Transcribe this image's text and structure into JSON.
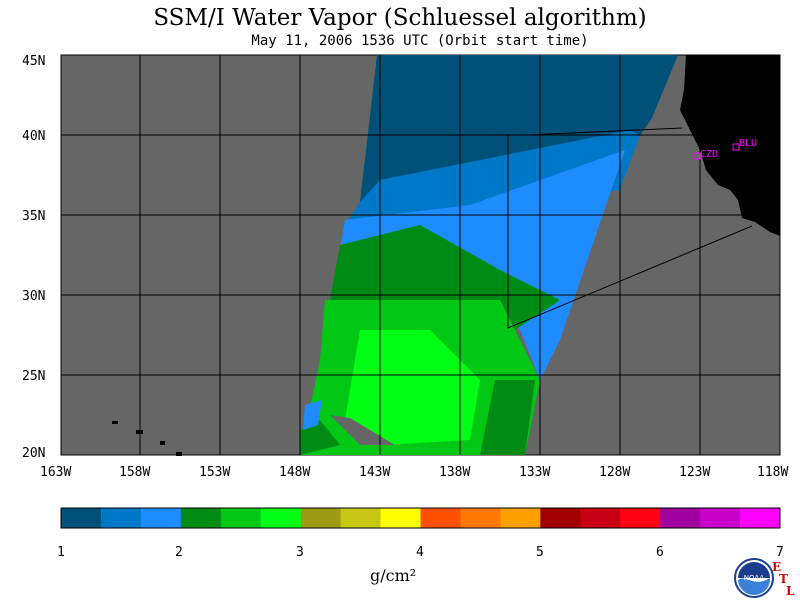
{
  "title": "SSM/I Water Vapor (Schluessel algorithm)",
  "subtitle": "May 11, 2006  1536 UTC  (Orbit start time)",
  "map": {
    "lat_labels": [
      "45N",
      "40N",
      "35N",
      "30N",
      "25N",
      "20N"
    ],
    "lon_labels": [
      "163W",
      "158W",
      "153W",
      "148W",
      "143W",
      "138W",
      "133W",
      "128W",
      "123W",
      "118W"
    ],
    "stations": [
      {
        "code": "CZD",
        "color": "#ff00ff"
      },
      {
        "code": "BLU",
        "color": "#ff00ff"
      }
    ],
    "background_color": "#666666",
    "land_color": "#000000"
  },
  "colorbar": {
    "tick_labels": [
      "1",
      "2",
      "3",
      "4",
      "5",
      "6",
      "7"
    ],
    "unit_label": "g/cm²",
    "colors": [
      "#005078",
      "#0078c8",
      "#1e8cff",
      "#008c14",
      "#00c814",
      "#00ff14",
      "#9c9c14",
      "#c8c814",
      "#ffff00",
      "#ff5000",
      "#ff7800",
      "#ffa000",
      "#a00000",
      "#c80014",
      "#ff0014",
      "#a000a0",
      "#c800c8",
      "#ff00ff"
    ]
  },
  "branding": {
    "logo": "NOAA",
    "etl_e": "E",
    "etl_t": "T",
    "etl_l": "L"
  }
}
